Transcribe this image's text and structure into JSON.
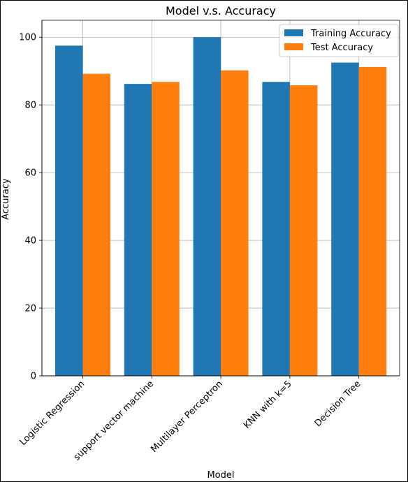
{
  "chart_data": {
    "type": "bar",
    "title": "Model v.s. Accuracy",
    "xlabel": "Model",
    "ylabel": "Accuracy",
    "categories": [
      "Logistic Regression",
      "support vector machine",
      "Multilayer Perceptron",
      "KNN with k=5",
      "Decision Tree"
    ],
    "series": [
      {
        "name": "Training Accuracy",
        "color": "#1f77b4",
        "values": [
          97.5,
          86.2,
          100.0,
          86.8,
          92.5
        ]
      },
      {
        "name": "Test Accuracy",
        "color": "#ff7f0e",
        "values": [
          89.2,
          86.8,
          90.2,
          85.8,
          91.2
        ]
      }
    ],
    "ylim": [
      0,
      105
    ],
    "yticks": [
      0,
      20,
      40,
      60,
      80,
      100
    ],
    "grid": true,
    "legend_position": "top-right"
  }
}
